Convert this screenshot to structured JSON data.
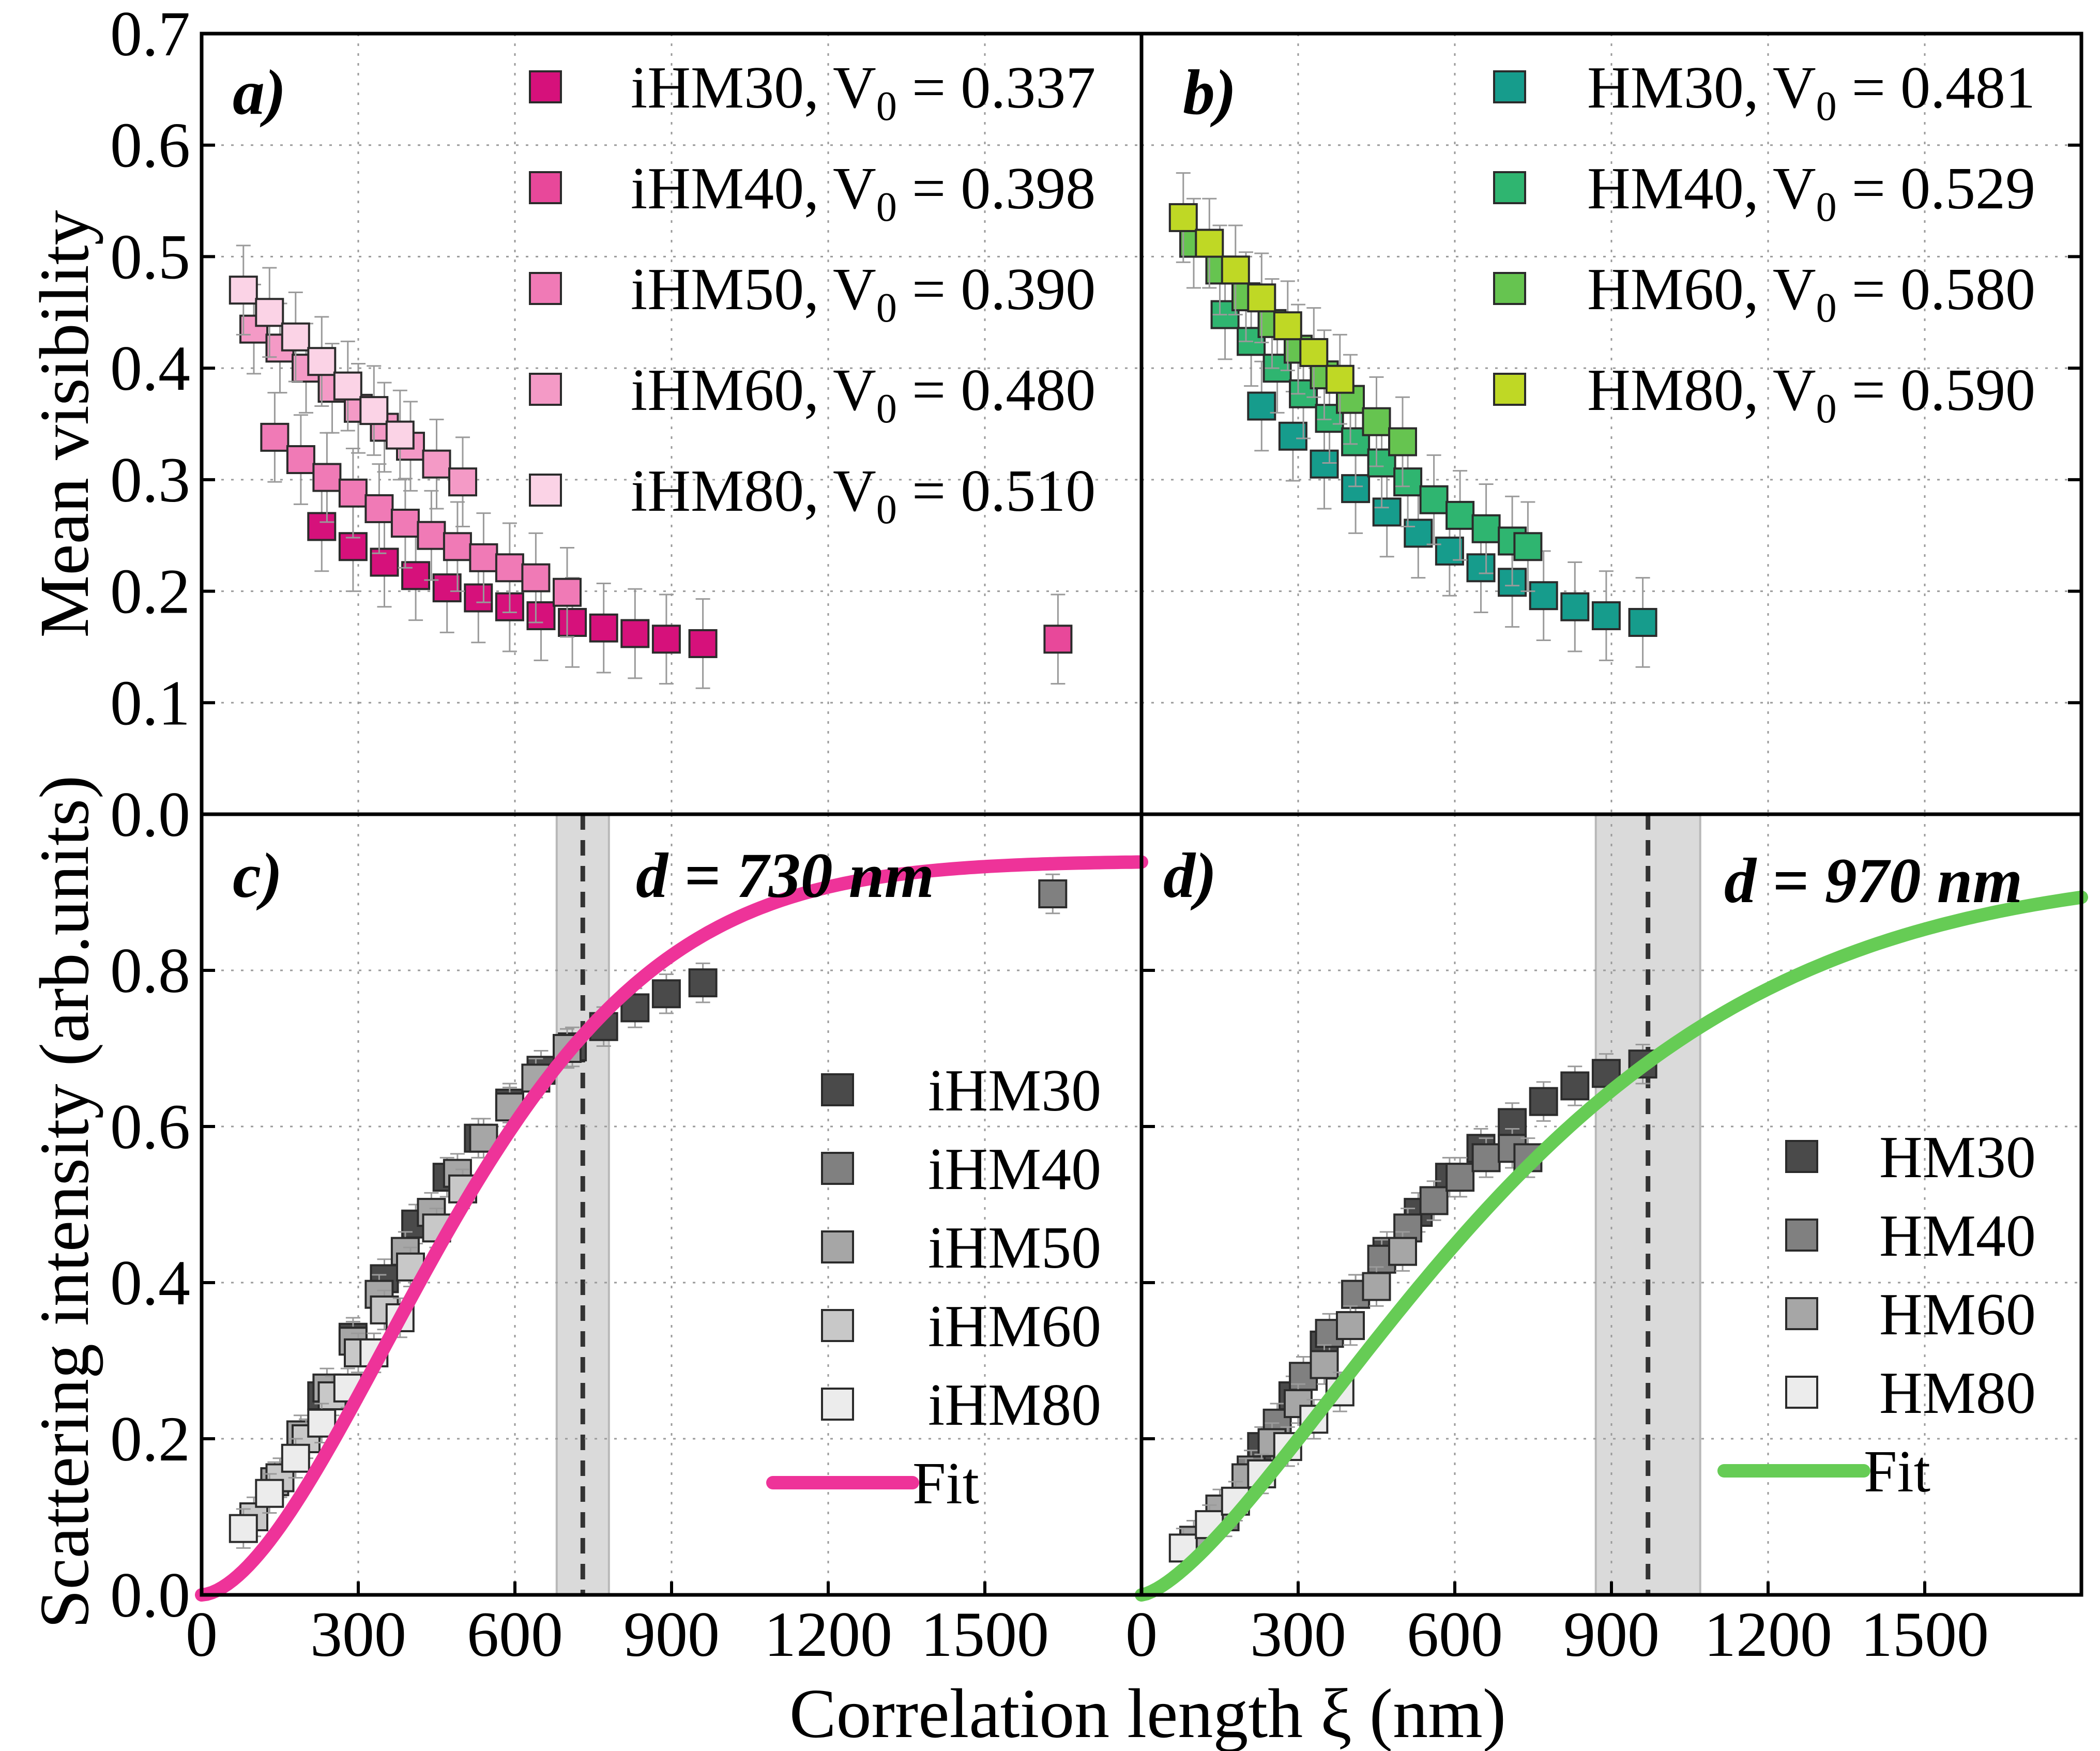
{
  "chart_data": [
    {
      "id": "a",
      "type": "scatter",
      "panel_label": "a)",
      "ylabel": "Mean visibility",
      "xlim": [
        0,
        1800
      ],
      "ylim": [
        0,
        0.7
      ],
      "yticks": [
        "0.0",
        "0.1",
        "0.2",
        "0.3",
        "0.4",
        "0.5",
        "0.6",
        "0.7"
      ],
      "grid": true,
      "legend_position": "top-right",
      "series": [
        {
          "name": "iHM30",
          "V0": "0.337",
          "legend": "iHM30, V0 = 0.337",
          "color": "#d6117b",
          "x": [
            230,
            290,
            350,
            410,
            470,
            530,
            590,
            650,
            710,
            770,
            830,
            890,
            960
          ],
          "y": [
            0.258,
            0.24,
            0.226,
            0.214,
            0.203,
            0.194,
            0.186,
            0.178,
            0.172,
            0.167,
            0.162,
            0.157,
            0.153
          ]
        },
        {
          "name": "iHM40",
          "V0": "0.398",
          "legend": "iHM40, V0 = 0.398",
          "color": "#e8489a",
          "x": [
            1640
          ],
          "y": [
            0.157
          ]
        },
        {
          "name": "iHM50",
          "V0": "0.390",
          "legend": "iHM50, V0 = 0.390",
          "color": "#f07ab6",
          "x": [
            140,
            190,
            240,
            290,
            340,
            390,
            440,
            490,
            540,
            590,
            640,
            700
          ],
          "y": [
            0.338,
            0.318,
            0.302,
            0.288,
            0.274,
            0.261,
            0.25,
            0.24,
            0.23,
            0.221,
            0.212,
            0.199
          ]
        },
        {
          "name": "iHM60",
          "V0": "0.480",
          "legend": "iHM60, V0 = 0.480",
          "color": "#f49ac6",
          "x": [
            100,
            150,
            200,
            250,
            300,
            350,
            400,
            450,
            500
          ],
          "y": [
            0.435,
            0.418,
            0.4,
            0.382,
            0.364,
            0.347,
            0.33,
            0.314,
            0.298
          ]
        },
        {
          "name": "iHM80",
          "V0": "0.510",
          "legend": "iHM80, V0 = 0.510",
          "color": "#fbd3e6",
          "x": [
            80,
            130,
            180,
            230,
            280,
            330,
            380
          ],
          "y": [
            0.47,
            0.45,
            0.428,
            0.406,
            0.384,
            0.362,
            0.34
          ]
        }
      ]
    },
    {
      "id": "b",
      "type": "scatter",
      "panel_label": "b)",
      "xlim": [
        0,
        1800
      ],
      "ylim": [
        0,
        0.7
      ],
      "grid": true,
      "legend_position": "top-right",
      "series": [
        {
          "name": "HM30",
          "V0": "0.481",
          "legend": "HM30, V0 = 0.481",
          "color": "#169c8c",
          "x": [
            230,
            290,
            350,
            410,
            470,
            530,
            590,
            650,
            710,
            770,
            830,
            890,
            960
          ],
          "y": [
            0.366,
            0.339,
            0.314,
            0.292,
            0.271,
            0.252,
            0.236,
            0.221,
            0.208,
            0.196,
            0.186,
            0.178,
            0.172
          ]
        },
        {
          "name": "HM40",
          "V0": "0.529",
          "legend": "HM40, V0 = 0.529",
          "color": "#2fb570",
          "x": [
            160,
            210,
            260,
            310,
            360,
            410,
            460,
            510,
            560,
            610,
            660,
            710,
            740
          ],
          "y": [
            0.448,
            0.424,
            0.4,
            0.377,
            0.355,
            0.334,
            0.315,
            0.298,
            0.282,
            0.268,
            0.256,
            0.245,
            0.24
          ]
        },
        {
          "name": "HM60",
          "V0": "0.580",
          "legend": "HM60, V0 = 0.580",
          "color": "#66c450",
          "x": [
            100,
            150,
            200,
            250,
            300,
            350,
            400,
            450,
            500
          ],
          "y": [
            0.512,
            0.488,
            0.464,
            0.44,
            0.417,
            0.394,
            0.372,
            0.352,
            0.334
          ]
        },
        {
          "name": "HM80",
          "V0": "0.590",
          "legend": "HM80, V0 = 0.590",
          "color": "#bfd825",
          "x": [
            80,
            130,
            180,
            230,
            280,
            330,
            380
          ],
          "y": [
            0.535,
            0.512,
            0.488,
            0.463,
            0.438,
            0.414,
            0.39
          ]
        }
      ]
    },
    {
      "id": "c",
      "type": "scatter",
      "panel_label": "c)",
      "annotation": "d = 730 nm",
      "d_nm": 730,
      "band_nm": [
        680,
        780
      ],
      "xlabel": "",
      "xlim": [
        0,
        1800
      ],
      "ylim": [
        0,
        1.0
      ],
      "xticks": [
        "0",
        "300",
        "600",
        "900",
        "1200",
        "1500"
      ],
      "yticks": [
        "0.0",
        "0.2",
        "0.4",
        "0.6",
        "0.8",
        "1.0"
      ],
      "grid": true,
      "legend_position": "right",
      "fit": {
        "name": "Fit",
        "color": "#ee3399"
      },
      "series": [
        {
          "name": "iHM30",
          "color": "#4a4a4a",
          "x": [
            230,
            290,
            350,
            410,
            470,
            530,
            590,
            650,
            710,
            770,
            830,
            890,
            960
          ],
          "y": [
            0.255,
            0.33,
            0.405,
            0.475,
            0.535,
            0.585,
            0.63,
            0.672,
            0.702,
            0.728,
            0.752,
            0.77,
            0.784
          ]
        },
        {
          "name": "iHM40",
          "color": "#808080",
          "x": [
            1630
          ],
          "y": [
            0.898
          ]
        },
        {
          "name": "iHM50",
          "color": "#a6a6a6",
          "x": [
            140,
            190,
            240,
            290,
            340,
            390,
            440,
            490,
            540,
            590,
            640,
            700
          ],
          "y": [
            0.145,
            0.205,
            0.265,
            0.325,
            0.385,
            0.44,
            0.49,
            0.54,
            0.585,
            0.625,
            0.662,
            0.7
          ]
        },
        {
          "name": "iHM60",
          "color": "#c8c8c8",
          "x": [
            100,
            150,
            200,
            250,
            300,
            350,
            400,
            450,
            500
          ],
          "y": [
            0.1,
            0.15,
            0.2,
            0.255,
            0.31,
            0.365,
            0.42,
            0.47,
            0.52
          ]
        },
        {
          "name": "iHM80",
          "color": "#ececec",
          "x": [
            80,
            130,
            180,
            230,
            280,
            330,
            380
          ],
          "y": [
            0.085,
            0.13,
            0.175,
            0.22,
            0.265,
            0.31,
            0.355
          ]
        }
      ]
    },
    {
      "id": "d",
      "type": "scatter",
      "panel_label": "d)",
      "annotation": "d = 970 nm",
      "d_nm": 970,
      "band_nm": [
        870,
        1070
      ],
      "xlim": [
        0,
        1800
      ],
      "ylim": [
        0,
        1.0
      ],
      "xticks": [
        "0",
        "300",
        "600",
        "900",
        "1200",
        "1500"
      ],
      "grid": true,
      "legend_position": "right",
      "fit": {
        "name": "Fit",
        "color": "#66cc55"
      },
      "series": [
        {
          "name": "HM30",
          "color": "#4a4a4a",
          "x": [
            230,
            290,
            350,
            410,
            470,
            530,
            590,
            650,
            710,
            770,
            830,
            890,
            960
          ],
          "y": [
            0.19,
            0.255,
            0.32,
            0.385,
            0.44,
            0.49,
            0.535,
            0.572,
            0.605,
            0.632,
            0.652,
            0.668,
            0.68
          ]
        },
        {
          "name": "HM40",
          "color": "#808080",
          "x": [
            160,
            210,
            260,
            310,
            360,
            410,
            460,
            510,
            560,
            610,
            660,
            710,
            740
          ],
          "y": [
            0.1,
            0.16,
            0.22,
            0.28,
            0.335,
            0.385,
            0.43,
            0.47,
            0.505,
            0.535,
            0.56,
            0.572,
            0.56
          ]
        },
        {
          "name": "HM60",
          "color": "#a6a6a6",
          "x": [
            100,
            150,
            200,
            250,
            300,
            350,
            400,
            450,
            500
          ],
          "y": [
            0.07,
            0.11,
            0.15,
            0.195,
            0.245,
            0.295,
            0.345,
            0.395,
            0.44
          ]
        },
        {
          "name": "HM80",
          "color": "#ececec",
          "x": [
            80,
            130,
            180,
            230,
            280,
            330,
            380
          ],
          "y": [
            0.06,
            0.09,
            0.12,
            0.155,
            0.19,
            0.225,
            0.26
          ]
        }
      ]
    }
  ],
  "axes": {
    "xlabel": "Correlation length ξ (nm)",
    "ylabel_top": "Mean visibility",
    "ylabel_bottom": "Scattering intensity (arb.units)"
  }
}
